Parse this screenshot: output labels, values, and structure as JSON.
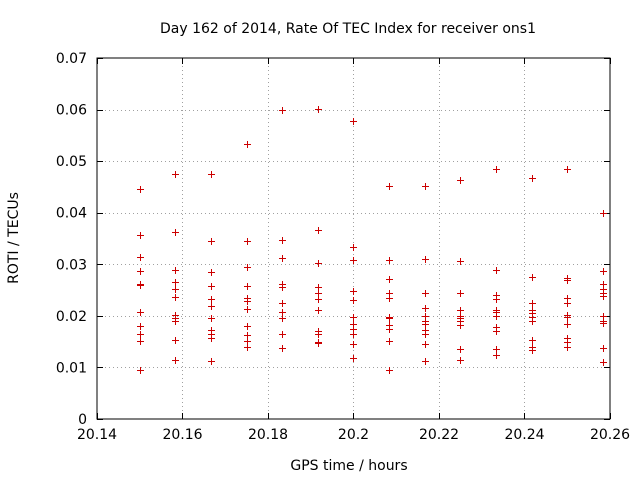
{
  "chart_data": {
    "type": "scatter",
    "title": "Day 162 of 2014, Rate Of TEC Index for receiver ons1",
    "xlabel": "GPS time / hours",
    "ylabel": "ROTI / TECUs",
    "xlim": [
      20.14,
      20.26
    ],
    "ylim": [
      0,
      0.07
    ],
    "xticks": [
      20.14,
      20.16,
      20.18,
      20.2,
      20.22,
      20.24,
      20.26
    ],
    "xtick_labels": [
      "20.14",
      "20.16",
      "20.18",
      "20.2",
      "20.22",
      "20.24",
      "20.26"
    ],
    "yticks": [
      0,
      0.01,
      0.02,
      0.03,
      0.04,
      0.05,
      0.06,
      0.07
    ],
    "ytick_labels": [
      "0",
      "0.01",
      "0.02",
      "0.03",
      "0.04",
      "0.05",
      "0.06",
      "0.07"
    ],
    "grid": true,
    "marker": "+",
    "marker_color": "#cc0000",
    "series": [
      {
        "name": "ons1",
        "points": [
          [
            20.15,
            0.0446
          ],
          [
            20.15,
            0.0356
          ],
          [
            20.15,
            0.0315
          ],
          [
            20.15,
            0.0287
          ],
          [
            20.15,
            0.0261
          ],
          [
            20.15,
            0.0259
          ],
          [
            20.15,
            0.0208
          ],
          [
            20.15,
            0.0181
          ],
          [
            20.15,
            0.0165
          ],
          [
            20.15,
            0.0152
          ],
          [
            20.15,
            0.0095
          ],
          [
            20.1583,
            0.0475
          ],
          [
            20.1583,
            0.0362
          ],
          [
            20.1583,
            0.0289
          ],
          [
            20.1583,
            0.0265
          ],
          [
            20.1583,
            0.0252
          ],
          [
            20.1583,
            0.0237
          ],
          [
            20.1583,
            0.0201
          ],
          [
            20.1583,
            0.0195
          ],
          [
            20.1583,
            0.019
          ],
          [
            20.1583,
            0.0153
          ],
          [
            20.1583,
            0.0115
          ],
          [
            20.1667,
            0.0475
          ],
          [
            20.1667,
            0.0345
          ],
          [
            20.1667,
            0.0286
          ],
          [
            20.1667,
            0.0258
          ],
          [
            20.1667,
            0.0232
          ],
          [
            20.1667,
            0.022
          ],
          [
            20.1667,
            0.0195
          ],
          [
            20.1667,
            0.0172
          ],
          [
            20.1667,
            0.0165
          ],
          [
            20.1667,
            0.0158
          ],
          [
            20.1667,
            0.0113
          ],
          [
            20.175,
            0.0533
          ],
          [
            20.175,
            0.0345
          ],
          [
            20.175,
            0.0295
          ],
          [
            20.175,
            0.0258
          ],
          [
            20.175,
            0.0235
          ],
          [
            20.175,
            0.0228
          ],
          [
            20.175,
            0.0214
          ],
          [
            20.175,
            0.0181
          ],
          [
            20.175,
            0.0162
          ],
          [
            20.175,
            0.0152
          ],
          [
            20.175,
            0.014
          ],
          [
            20.1833,
            0.06
          ],
          [
            20.1833,
            0.0347
          ],
          [
            20.1833,
            0.0312
          ],
          [
            20.1833,
            0.0262
          ],
          [
            20.1833,
            0.0255
          ],
          [
            20.1833,
            0.0225
          ],
          [
            20.1833,
            0.0208
          ],
          [
            20.1833,
            0.0195
          ],
          [
            20.1833,
            0.0165
          ],
          [
            20.1833,
            0.0138
          ],
          [
            20.1917,
            0.0601
          ],
          [
            20.1917,
            0.0367
          ],
          [
            20.1917,
            0.0303
          ],
          [
            20.1917,
            0.0255
          ],
          [
            20.1917,
            0.0245
          ],
          [
            20.1917,
            0.0232
          ],
          [
            20.1917,
            0.0212
          ],
          [
            20.1917,
            0.017
          ],
          [
            20.1917,
            0.0164
          ],
          [
            20.1917,
            0.015
          ],
          [
            20.1917,
            0.0147
          ],
          [
            20.2,
            0.0577
          ],
          [
            20.2,
            0.0334
          ],
          [
            20.2,
            0.0308
          ],
          [
            20.2,
            0.0248
          ],
          [
            20.2,
            0.023
          ],
          [
            20.2,
            0.0198
          ],
          [
            20.2,
            0.0185
          ],
          [
            20.2,
            0.0175
          ],
          [
            20.2,
            0.0165
          ],
          [
            20.2,
            0.0145
          ],
          [
            20.2,
            0.0118
          ],
          [
            20.2083,
            0.0452
          ],
          [
            20.2083,
            0.0308
          ],
          [
            20.2083,
            0.0272
          ],
          [
            20.2083,
            0.0245
          ],
          [
            20.2083,
            0.0235
          ],
          [
            20.2083,
            0.0198
          ],
          [
            20.2083,
            0.0195
          ],
          [
            20.2083,
            0.0182
          ],
          [
            20.2083,
            0.0175
          ],
          [
            20.2083,
            0.0152
          ],
          [
            20.2083,
            0.0095
          ],
          [
            20.2167,
            0.0452
          ],
          [
            20.2167,
            0.031
          ],
          [
            20.2167,
            0.0245
          ],
          [
            20.2167,
            0.0215
          ],
          [
            20.2167,
            0.02
          ],
          [
            20.2167,
            0.019
          ],
          [
            20.2167,
            0.0185
          ],
          [
            20.2167,
            0.0172
          ],
          [
            20.2167,
            0.0165
          ],
          [
            20.2167,
            0.0145
          ],
          [
            20.2167,
            0.0112
          ],
          [
            20.225,
            0.0463
          ],
          [
            20.225,
            0.0306
          ],
          [
            20.225,
            0.0245
          ],
          [
            20.225,
            0.0244
          ],
          [
            20.225,
            0.0212
          ],
          [
            20.225,
            0.02
          ],
          [
            20.225,
            0.0195
          ],
          [
            20.225,
            0.019
          ],
          [
            20.225,
            0.0182
          ],
          [
            20.225,
            0.0135
          ],
          [
            20.225,
            0.0115
          ],
          [
            20.2333,
            0.0485
          ],
          [
            20.2333,
            0.0288
          ],
          [
            20.2333,
            0.024
          ],
          [
            20.2333,
            0.0232
          ],
          [
            20.2333,
            0.0212
          ],
          [
            20.2333,
            0.0208
          ],
          [
            20.2333,
            0.02
          ],
          [
            20.2333,
            0.0178
          ],
          [
            20.2333,
            0.017
          ],
          [
            20.2333,
            0.0135
          ],
          [
            20.2333,
            0.0125
          ],
          [
            20.2417,
            0.0467
          ],
          [
            20.2417,
            0.0275
          ],
          [
            20.2417,
            0.0225
          ],
          [
            20.2417,
            0.0212
          ],
          [
            20.2417,
            0.0205
          ],
          [
            20.2417,
            0.0198
          ],
          [
            20.2417,
            0.019
          ],
          [
            20.2417,
            0.0153
          ],
          [
            20.2417,
            0.014
          ],
          [
            20.2417,
            0.0133
          ],
          [
            20.25,
            0.0485
          ],
          [
            20.25,
            0.0274
          ],
          [
            20.25,
            0.027
          ],
          [
            20.25,
            0.0235
          ],
          [
            20.25,
            0.0225
          ],
          [
            20.25,
            0.0202
          ],
          [
            20.25,
            0.0198
          ],
          [
            20.25,
            0.0185
          ],
          [
            20.25,
            0.0157
          ],
          [
            20.25,
            0.015
          ],
          [
            20.25,
            0.014
          ],
          [
            20.2583,
            0.04
          ],
          [
            20.2583,
            0.0287
          ],
          [
            20.2583,
            0.0262
          ],
          [
            20.2583,
            0.0252
          ],
          [
            20.2583,
            0.0245
          ],
          [
            20.2583,
            0.0238
          ],
          [
            20.2583,
            0.02
          ],
          [
            20.2583,
            0.019
          ],
          [
            20.2583,
            0.0187
          ],
          [
            20.2583,
            0.0138
          ],
          [
            20.2583,
            0.011
          ]
        ]
      }
    ]
  }
}
